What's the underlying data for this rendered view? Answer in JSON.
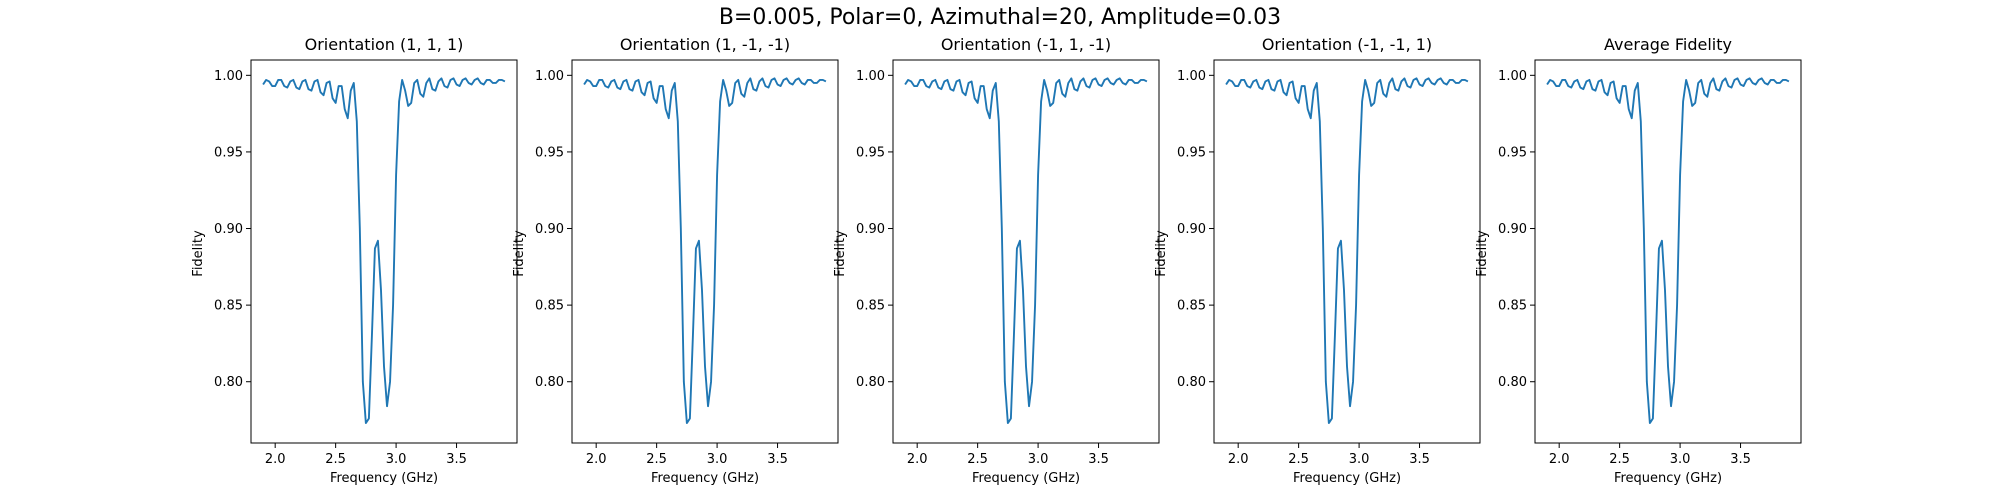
{
  "figure": {
    "suptitle": "B=0.005, Polar=0, Azimuthal=20, Amplitude=0.03",
    "line_color": "#1f77b4"
  },
  "chart_data": [
    {
      "type": "line",
      "title": "Orientation (1, 1, 1)",
      "xlabel": "Frequency (GHz)",
      "ylabel": "Fidelity",
      "xlim": [
        1.8,
        4.0
      ],
      "ylim": [
        0.76,
        1.01
      ],
      "xticks": [
        "2.0",
        "2.5",
        "3.0",
        "3.5"
      ],
      "yticks": [
        "0.80",
        "0.85",
        "0.90",
        "0.95",
        "1.00"
      ],
      "grid": false,
      "series": [
        {
          "color": "#1f77b4",
          "x": [
            1.9,
            1.925,
            1.95,
            1.975,
            2.0,
            2.025,
            2.05,
            2.075,
            2.1,
            2.125,
            2.15,
            2.175,
            2.2,
            2.225,
            2.25,
            2.275,
            2.3,
            2.325,
            2.35,
            2.375,
            2.4,
            2.425,
            2.45,
            2.475,
            2.5,
            2.525,
            2.55,
            2.575,
            2.6,
            2.625,
            2.65,
            2.675,
            2.7,
            2.725,
            2.75,
            2.775,
            2.8,
            2.825,
            2.85,
            2.875,
            2.9,
            2.925,
            2.95,
            2.975,
            3.0,
            3.025,
            3.05,
            3.075,
            3.1,
            3.125,
            3.15,
            3.175,
            3.2,
            3.225,
            3.25,
            3.275,
            3.3,
            3.325,
            3.35,
            3.375,
            3.4,
            3.425,
            3.45,
            3.475,
            3.5,
            3.525,
            3.55,
            3.575,
            3.6,
            3.625,
            3.65,
            3.675,
            3.7,
            3.725,
            3.75,
            3.775,
            3.8,
            3.825,
            3.85,
            3.875,
            3.9
          ],
          "y": [
            0.994,
            0.997,
            0.996,
            0.993,
            0.993,
            0.997,
            0.997,
            0.993,
            0.992,
            0.996,
            0.997,
            0.992,
            0.991,
            0.996,
            0.997,
            0.991,
            0.99,
            0.996,
            0.997,
            0.989,
            0.987,
            0.995,
            0.996,
            0.985,
            0.982,
            0.993,
            0.993,
            0.978,
            0.972,
            0.99,
            0.995,
            0.97,
            0.9,
            0.8,
            0.773,
            0.776,
            0.83,
            0.887,
            0.892,
            0.86,
            0.81,
            0.784,
            0.8,
            0.85,
            0.935,
            0.983,
            0.997,
            0.99,
            0.98,
            0.982,
            0.995,
            0.997,
            0.988,
            0.986,
            0.995,
            0.998,
            0.991,
            0.99,
            0.996,
            0.998,
            0.993,
            0.992,
            0.997,
            0.998,
            0.994,
            0.993,
            0.997,
            0.998,
            0.995,
            0.994,
            0.997,
            0.998,
            0.995,
            0.994,
            0.997,
            0.997,
            0.995,
            0.995,
            0.997,
            0.997,
            0.996
          ]
        }
      ]
    },
    {
      "type": "line",
      "title": "Orientation (1, -1, -1)",
      "xlabel": "Frequency (GHz)",
      "ylabel": "Fidelity",
      "xlim": [
        1.8,
        4.0
      ],
      "ylim": [
        0.76,
        1.01
      ],
      "xticks": [
        "2.0",
        "2.5",
        "3.0",
        "3.5"
      ],
      "yticks": [
        "0.80",
        "0.85",
        "0.90",
        "0.95",
        "1.00"
      ],
      "grid": false,
      "series": [
        {
          "color": "#1f77b4",
          "x": [
            1.9,
            1.925,
            1.95,
            1.975,
            2.0,
            2.025,
            2.05,
            2.075,
            2.1,
            2.125,
            2.15,
            2.175,
            2.2,
            2.225,
            2.25,
            2.275,
            2.3,
            2.325,
            2.35,
            2.375,
            2.4,
            2.425,
            2.45,
            2.475,
            2.5,
            2.525,
            2.55,
            2.575,
            2.6,
            2.625,
            2.65,
            2.675,
            2.7,
            2.725,
            2.75,
            2.775,
            2.8,
            2.825,
            2.85,
            2.875,
            2.9,
            2.925,
            2.95,
            2.975,
            3.0,
            3.025,
            3.05,
            3.075,
            3.1,
            3.125,
            3.15,
            3.175,
            3.2,
            3.225,
            3.25,
            3.275,
            3.3,
            3.325,
            3.35,
            3.375,
            3.4,
            3.425,
            3.45,
            3.475,
            3.5,
            3.525,
            3.55,
            3.575,
            3.6,
            3.625,
            3.65,
            3.675,
            3.7,
            3.725,
            3.75,
            3.775,
            3.8,
            3.825,
            3.85,
            3.875,
            3.9
          ],
          "y": [
            0.994,
            0.997,
            0.996,
            0.993,
            0.993,
            0.997,
            0.997,
            0.993,
            0.992,
            0.996,
            0.997,
            0.992,
            0.991,
            0.996,
            0.997,
            0.991,
            0.99,
            0.996,
            0.997,
            0.989,
            0.987,
            0.995,
            0.996,
            0.985,
            0.982,
            0.993,
            0.993,
            0.978,
            0.972,
            0.99,
            0.995,
            0.97,
            0.9,
            0.8,
            0.773,
            0.776,
            0.83,
            0.887,
            0.892,
            0.86,
            0.81,
            0.784,
            0.8,
            0.85,
            0.935,
            0.983,
            0.997,
            0.99,
            0.98,
            0.982,
            0.995,
            0.997,
            0.988,
            0.986,
            0.995,
            0.998,
            0.991,
            0.99,
            0.996,
            0.998,
            0.993,
            0.992,
            0.997,
            0.998,
            0.994,
            0.993,
            0.997,
            0.998,
            0.995,
            0.994,
            0.997,
            0.998,
            0.995,
            0.994,
            0.997,
            0.997,
            0.995,
            0.995,
            0.997,
            0.997,
            0.996
          ]
        }
      ]
    },
    {
      "type": "line",
      "title": "Orientation (-1, 1, -1)",
      "xlabel": "Frequency (GHz)",
      "ylabel": "Fidelity",
      "xlim": [
        1.8,
        4.0
      ],
      "ylim": [
        0.76,
        1.01
      ],
      "xticks": [
        "2.0",
        "2.5",
        "3.0",
        "3.5"
      ],
      "yticks": [
        "0.80",
        "0.85",
        "0.90",
        "0.95",
        "1.00"
      ],
      "grid": false,
      "series": [
        {
          "color": "#1f77b4",
          "x": [
            1.9,
            1.925,
            1.95,
            1.975,
            2.0,
            2.025,
            2.05,
            2.075,
            2.1,
            2.125,
            2.15,
            2.175,
            2.2,
            2.225,
            2.25,
            2.275,
            2.3,
            2.325,
            2.35,
            2.375,
            2.4,
            2.425,
            2.45,
            2.475,
            2.5,
            2.525,
            2.55,
            2.575,
            2.6,
            2.625,
            2.65,
            2.675,
            2.7,
            2.725,
            2.75,
            2.775,
            2.8,
            2.825,
            2.85,
            2.875,
            2.9,
            2.925,
            2.95,
            2.975,
            3.0,
            3.025,
            3.05,
            3.075,
            3.1,
            3.125,
            3.15,
            3.175,
            3.2,
            3.225,
            3.25,
            3.275,
            3.3,
            3.325,
            3.35,
            3.375,
            3.4,
            3.425,
            3.45,
            3.475,
            3.5,
            3.525,
            3.55,
            3.575,
            3.6,
            3.625,
            3.65,
            3.675,
            3.7,
            3.725,
            3.75,
            3.775,
            3.8,
            3.825,
            3.85,
            3.875,
            3.9
          ],
          "y": [
            0.994,
            0.997,
            0.996,
            0.993,
            0.993,
            0.997,
            0.997,
            0.993,
            0.992,
            0.996,
            0.997,
            0.992,
            0.991,
            0.996,
            0.997,
            0.991,
            0.99,
            0.996,
            0.997,
            0.989,
            0.987,
            0.995,
            0.996,
            0.985,
            0.982,
            0.993,
            0.993,
            0.978,
            0.972,
            0.99,
            0.995,
            0.97,
            0.9,
            0.8,
            0.773,
            0.776,
            0.83,
            0.887,
            0.892,
            0.86,
            0.81,
            0.784,
            0.8,
            0.85,
            0.935,
            0.983,
            0.997,
            0.99,
            0.98,
            0.982,
            0.995,
            0.997,
            0.988,
            0.986,
            0.995,
            0.998,
            0.991,
            0.99,
            0.996,
            0.998,
            0.993,
            0.992,
            0.997,
            0.998,
            0.994,
            0.993,
            0.997,
            0.998,
            0.995,
            0.994,
            0.997,
            0.998,
            0.995,
            0.994,
            0.997,
            0.997,
            0.995,
            0.995,
            0.997,
            0.997,
            0.996
          ]
        }
      ]
    },
    {
      "type": "line",
      "title": "Orientation (-1, -1, 1)",
      "xlabel": "Frequency (GHz)",
      "ylabel": "Fidelity",
      "xlim": [
        1.8,
        4.0
      ],
      "ylim": [
        0.76,
        1.01
      ],
      "xticks": [
        "2.0",
        "2.5",
        "3.0",
        "3.5"
      ],
      "yticks": [
        "0.80",
        "0.85",
        "0.90",
        "0.95",
        "1.00"
      ],
      "grid": false,
      "series": [
        {
          "color": "#1f77b4",
          "x": [
            1.9,
            1.925,
            1.95,
            1.975,
            2.0,
            2.025,
            2.05,
            2.075,
            2.1,
            2.125,
            2.15,
            2.175,
            2.2,
            2.225,
            2.25,
            2.275,
            2.3,
            2.325,
            2.35,
            2.375,
            2.4,
            2.425,
            2.45,
            2.475,
            2.5,
            2.525,
            2.55,
            2.575,
            2.6,
            2.625,
            2.65,
            2.675,
            2.7,
            2.725,
            2.75,
            2.775,
            2.8,
            2.825,
            2.85,
            2.875,
            2.9,
            2.925,
            2.95,
            2.975,
            3.0,
            3.025,
            3.05,
            3.075,
            3.1,
            3.125,
            3.15,
            3.175,
            3.2,
            3.225,
            3.25,
            3.275,
            3.3,
            3.325,
            3.35,
            3.375,
            3.4,
            3.425,
            3.45,
            3.475,
            3.5,
            3.525,
            3.55,
            3.575,
            3.6,
            3.625,
            3.65,
            3.675,
            3.7,
            3.725,
            3.75,
            3.775,
            3.8,
            3.825,
            3.85,
            3.875,
            3.9
          ],
          "y": [
            0.994,
            0.997,
            0.996,
            0.993,
            0.993,
            0.997,
            0.997,
            0.993,
            0.992,
            0.996,
            0.997,
            0.992,
            0.991,
            0.996,
            0.997,
            0.991,
            0.99,
            0.996,
            0.997,
            0.989,
            0.987,
            0.995,
            0.996,
            0.985,
            0.982,
            0.993,
            0.993,
            0.978,
            0.972,
            0.99,
            0.995,
            0.97,
            0.9,
            0.8,
            0.773,
            0.776,
            0.83,
            0.887,
            0.892,
            0.86,
            0.81,
            0.784,
            0.8,
            0.85,
            0.935,
            0.983,
            0.997,
            0.99,
            0.98,
            0.982,
            0.995,
            0.997,
            0.988,
            0.986,
            0.995,
            0.998,
            0.991,
            0.99,
            0.996,
            0.998,
            0.993,
            0.992,
            0.997,
            0.998,
            0.994,
            0.993,
            0.997,
            0.998,
            0.995,
            0.994,
            0.997,
            0.998,
            0.995,
            0.994,
            0.997,
            0.997,
            0.995,
            0.995,
            0.997,
            0.997,
            0.996
          ]
        }
      ]
    },
    {
      "type": "line",
      "title": "Average Fidelity",
      "xlabel": "Frequency (GHz)",
      "ylabel": "Fidelity",
      "xlim": [
        1.8,
        4.0
      ],
      "ylim": [
        0.76,
        1.01
      ],
      "xticks": [
        "2.0",
        "2.5",
        "3.0",
        "3.5"
      ],
      "yticks": [
        "0.80",
        "0.85",
        "0.90",
        "0.95",
        "1.00"
      ],
      "grid": false,
      "series": [
        {
          "color": "#1f77b4",
          "x": [
            1.9,
            1.925,
            1.95,
            1.975,
            2.0,
            2.025,
            2.05,
            2.075,
            2.1,
            2.125,
            2.15,
            2.175,
            2.2,
            2.225,
            2.25,
            2.275,
            2.3,
            2.325,
            2.35,
            2.375,
            2.4,
            2.425,
            2.45,
            2.475,
            2.5,
            2.525,
            2.55,
            2.575,
            2.6,
            2.625,
            2.65,
            2.675,
            2.7,
            2.725,
            2.75,
            2.775,
            2.8,
            2.825,
            2.85,
            2.875,
            2.9,
            2.925,
            2.95,
            2.975,
            3.0,
            3.025,
            3.05,
            3.075,
            3.1,
            3.125,
            3.15,
            3.175,
            3.2,
            3.225,
            3.25,
            3.275,
            3.3,
            3.325,
            3.35,
            3.375,
            3.4,
            3.425,
            3.45,
            3.475,
            3.5,
            3.525,
            3.55,
            3.575,
            3.6,
            3.625,
            3.65,
            3.675,
            3.7,
            3.725,
            3.75,
            3.775,
            3.8,
            3.825,
            3.85,
            3.875,
            3.9
          ],
          "y": [
            0.994,
            0.997,
            0.996,
            0.993,
            0.993,
            0.997,
            0.997,
            0.993,
            0.992,
            0.996,
            0.997,
            0.992,
            0.991,
            0.996,
            0.997,
            0.991,
            0.99,
            0.996,
            0.997,
            0.989,
            0.987,
            0.995,
            0.996,
            0.985,
            0.982,
            0.993,
            0.993,
            0.978,
            0.972,
            0.99,
            0.995,
            0.97,
            0.9,
            0.8,
            0.773,
            0.776,
            0.83,
            0.887,
            0.892,
            0.86,
            0.81,
            0.784,
            0.8,
            0.85,
            0.935,
            0.983,
            0.997,
            0.99,
            0.98,
            0.982,
            0.995,
            0.997,
            0.988,
            0.986,
            0.995,
            0.998,
            0.991,
            0.99,
            0.996,
            0.998,
            0.993,
            0.992,
            0.997,
            0.998,
            0.994,
            0.993,
            0.997,
            0.998,
            0.995,
            0.994,
            0.997,
            0.998,
            0.995,
            0.994,
            0.997,
            0.997,
            0.995,
            0.995,
            0.997,
            0.997,
            0.996
          ]
        }
      ]
    }
  ]
}
